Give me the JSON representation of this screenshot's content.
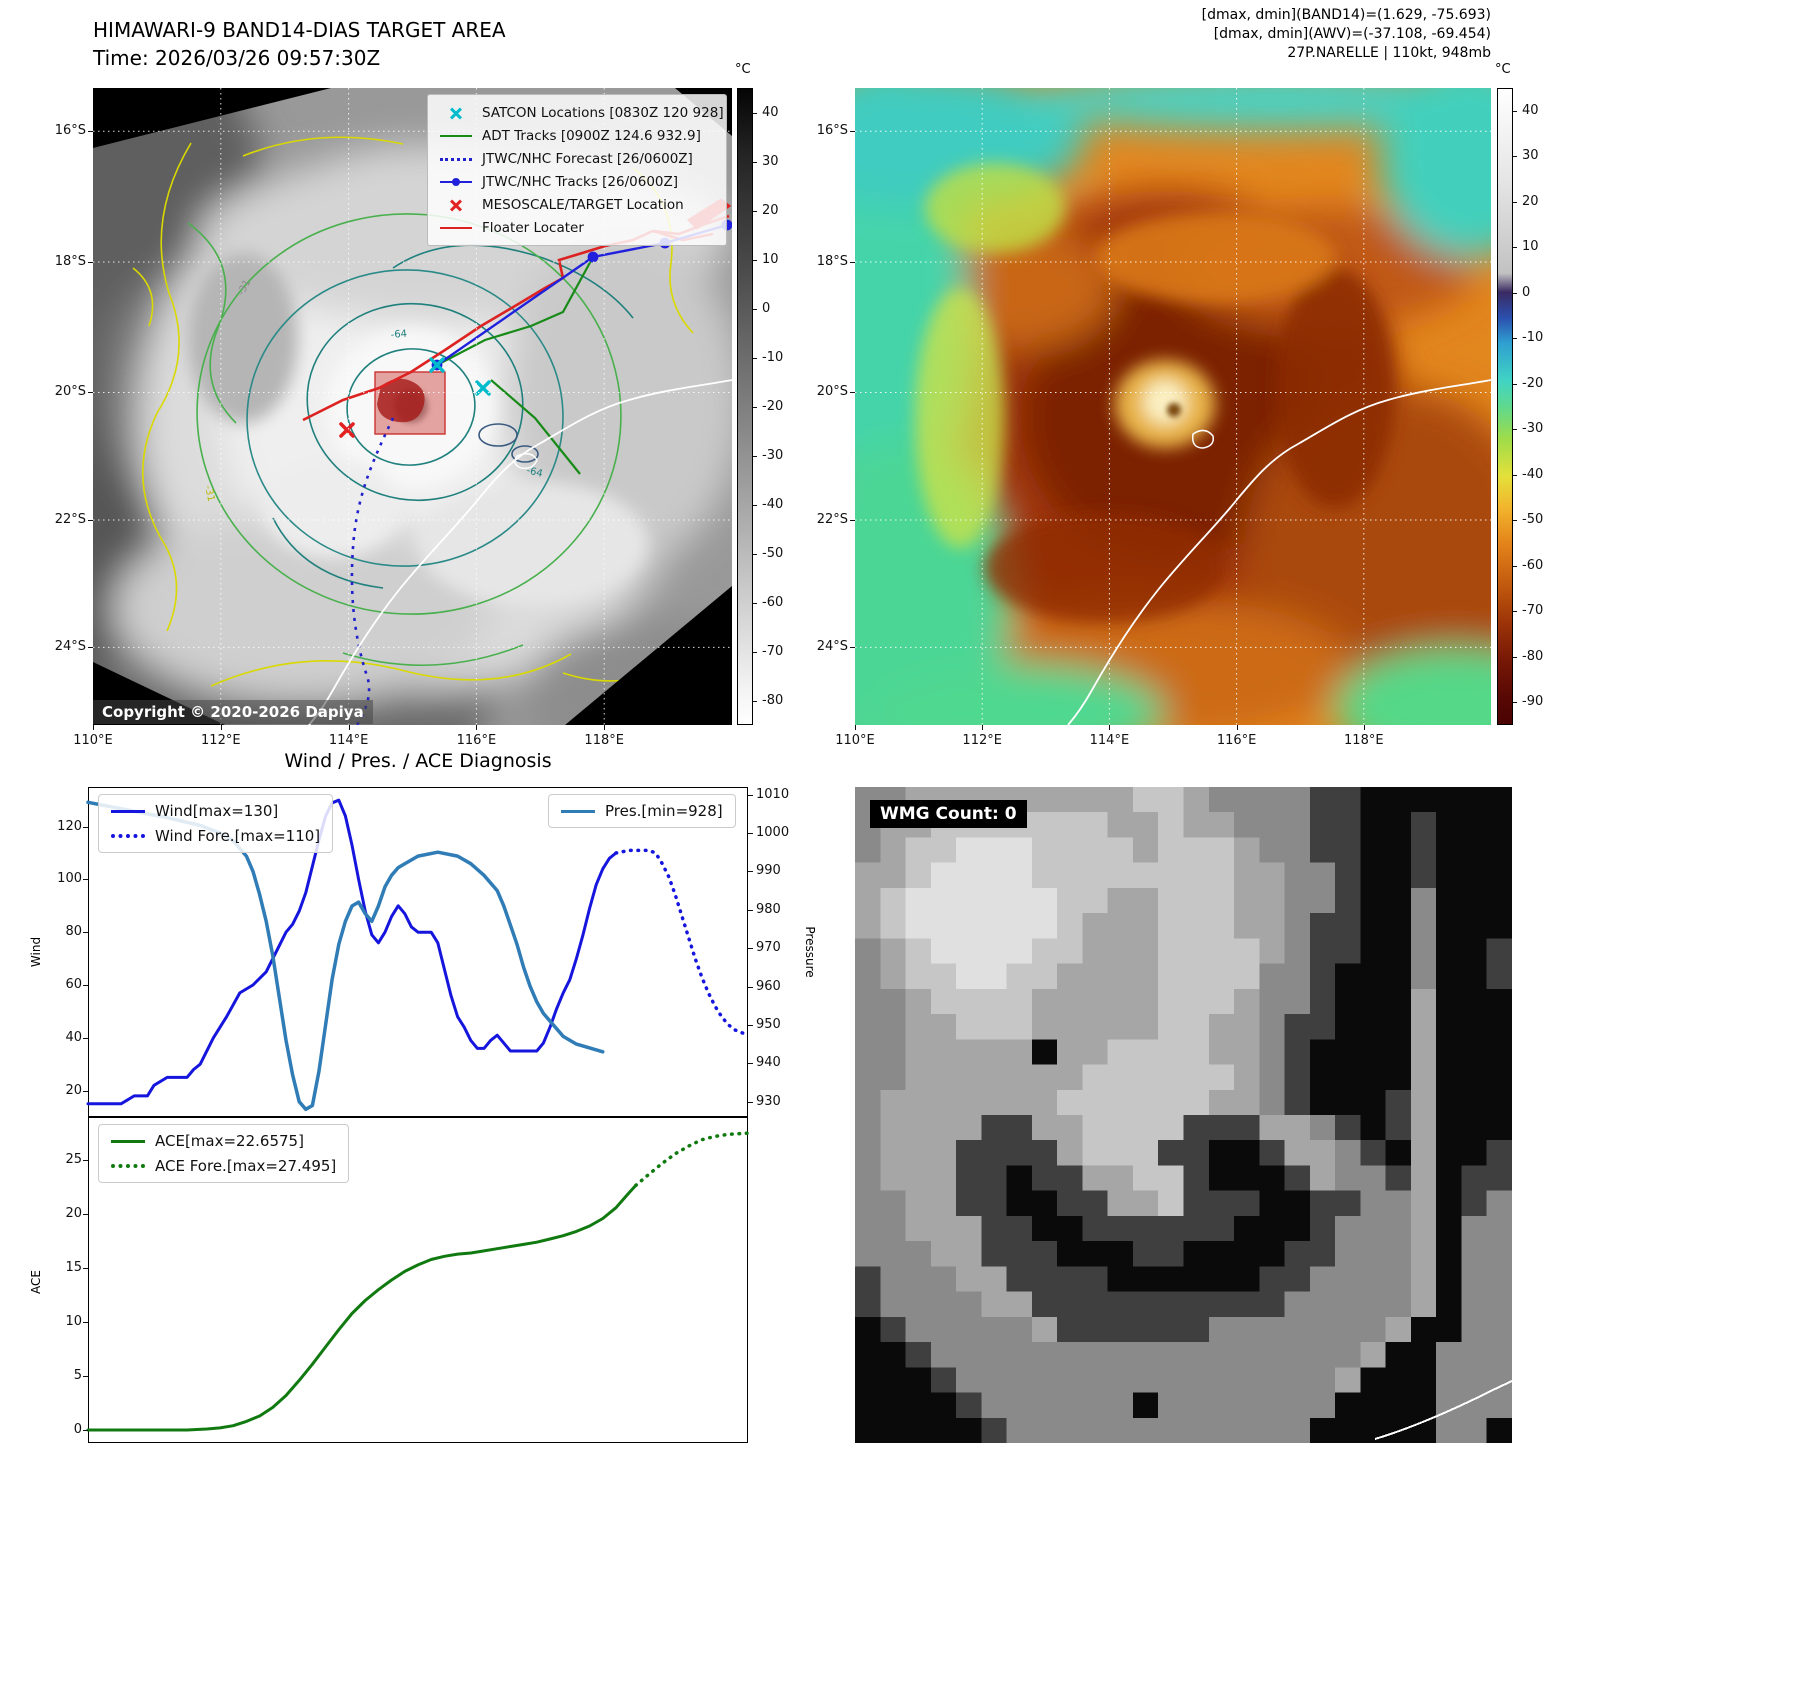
{
  "band14": {
    "title": "HIMAWARI-9 BAND14-DIAS TARGET AREA",
    "time": "Time: 2026/03/26 09:57:30Z",
    "copyright": "Copyright © 2020-2026 Dapiya",
    "colorbar_unit": "°C",
    "colorbar_ticks": [
      40,
      30,
      20,
      10,
      0,
      -10,
      -20,
      -30,
      -40,
      -50,
      -60,
      -70,
      -80
    ],
    "x_ticks": [
      "110°E",
      "112°E",
      "114°E",
      "116°E",
      "118°E"
    ],
    "y_ticks": [
      "16°S",
      "18°S",
      "20°S",
      "22°S",
      "24°S"
    ],
    "legend": [
      {
        "marker": "x-cyan",
        "label": "SATCON Locations [0830Z 120 928]"
      },
      {
        "marker": "line-green",
        "label": "ADT Tracks [0900Z 124.6 932.9]"
      },
      {
        "marker": "dotted-blue",
        "label": "JTWC/NHC Forecast [26/0600Z]"
      },
      {
        "marker": "line-dot-blue",
        "label": "JTWC/NHC Tracks [26/0600Z]"
      },
      {
        "marker": "x-red",
        "label": "MESOSCALE/TARGET Location"
      },
      {
        "marker": "line-red",
        "label": "Floater Locater"
      }
    ],
    "contour_labels": [
      "-31",
      "-64",
      "-64",
      "-31"
    ]
  },
  "awv": {
    "header_lines": [
      "[dmax, dmin](BAND14)=(1.629, -75.693)",
      "[dmax, dmin](AWV)=(-37.108, -69.454)",
      "27P.NARELLE | 110kt, 948mb"
    ],
    "colorbar_unit": "°C",
    "colorbar_ticks": [
      40,
      30,
      20,
      10,
      0,
      -10,
      -20,
      -30,
      -40,
      -50,
      -60,
      -70,
      -80,
      -90
    ],
    "x_ticks": [
      "110°E",
      "112°E",
      "114°E",
      "116°E",
      "118°E"
    ],
    "y_ticks": [
      "16°S",
      "18°S",
      "20°S",
      "22°S",
      "24°S"
    ]
  },
  "diagnosis": {
    "title": "Wind / Pres. / ACE Diagnosis",
    "wind_axis_label": "Wind",
    "pressure_axis_label": "Pressure",
    "ace_axis_label": "ACE",
    "legend_wind": "Wind[max=130]",
    "legend_wind_fore": "Wind Fore.[max=110]",
    "legend_pres": "Pres.[min=928]",
    "legend_ace": "ACE[max=22.6575]",
    "legend_ace_fore": "ACE Fore.[max=27.495]",
    "wind_ticks": [
      20,
      40,
      60,
      80,
      100,
      120
    ],
    "pressure_ticks": [
      930,
      940,
      950,
      960,
      970,
      980,
      990,
      1000,
      1010
    ],
    "ace_ticks": [
      0,
      5,
      10,
      15,
      20,
      25
    ]
  },
  "wmg": {
    "label": "WMG Count: 0",
    "palette": {
      "#": "#0a0a0a",
      "d": "#3f3f3f",
      "m": "#8a8a8a",
      "g": "#a6a6a6",
      "l": "#c6c6c6",
      "w": "#e0e0e0"
    },
    "pixels": [
      "mmgggggggggllgmmmmdd######",
      "mgglllllllgglggmmmdd##d###",
      "mgllwwwllllglllgmmdd##d###",
      "gglwwwwllllllllggmmd##d###",
      "glwwwwwwllgglllggmmd##m###",
      "glwwwwwwlggglllggmdd##m###",
      "mglwwwwllgggllllgmdd##m##d",
      "mgllwwllggggllllmmd###m##d",
      "mmgllllggggglllgmmd###g###",
      "mmgglllgggggllggmdd###g###",
      "mmggggg#ggllllggmd####g###",
      "mmgggggggllllllgmd####g###",
      "mgggggggllllllggmd###dg###",
      "mggggddgglllldddggmd#dg###",
      "mgggddddgllldd##dggmd#g##d",
      "mgggdd#ddgglld###dgmmdg#dd",
      "mmggdd##ddgglddd##ddmmg#dm",
      "mmgggdd##dddddd###dmmmg#mm",
      "mmmggddd###dd####ddmmmg#mm",
      "dmmmggdddd######ddmmmmg#mm",
      "dmmmmggddddddddddmmmmmg#mm",
      "#dmmmmmgddddddmmmmmmmg##mm",
      "##dmmmmmmmmmmmmmmmmmg##mmm",
      "###dmmmmmmmmmmmmmmmg###mmm",
      "####dmmmmmm#mmmmmmm####mmm",
      "#####dmmmmmmmmmmmm#####mm#"
    ]
  },
  "chart_data": [
    {
      "type": "line",
      "title": "Wind / Pres. / ACE Diagnosis (wind & pressure)",
      "x_range": [
        0,
        100
      ],
      "wind_ylim": [
        10,
        135
      ],
      "pressure_ylim": [
        926,
        1012
      ],
      "legend": [
        "Wind[max=130]",
        "Wind Fore.[max=110]",
        "Pres.[min=928]"
      ],
      "series": [
        {
          "name": "Wind",
          "name_id": "wind-series",
          "axis": "wind",
          "color": "#1515dd",
          "style": "solid",
          "width": 3,
          "points": [
            [
              0,
              15
            ],
            [
              5,
              15
            ],
            [
              7,
              18
            ],
            [
              9,
              18
            ],
            [
              10,
              22
            ],
            [
              12,
              25
            ],
            [
              15,
              25
            ],
            [
              16,
              28
            ],
            [
              17,
              30
            ],
            [
              19,
              40
            ],
            [
              21,
              48
            ],
            [
              23,
              57
            ],
            [
              25,
              60
            ],
            [
              27,
              65
            ],
            [
              28,
              70
            ],
            [
              29,
              75
            ],
            [
              30,
              80
            ],
            [
              31,
              83
            ],
            [
              32,
              88
            ],
            [
              33,
              95
            ],
            [
              34,
              105
            ],
            [
              35,
              115
            ],
            [
              36,
              124
            ],
            [
              37,
              129
            ],
            [
              38,
              130
            ],
            [
              39,
              124
            ],
            [
              40,
              113
            ],
            [
              41,
              100
            ],
            [
              42,
              88
            ],
            [
              43,
              79
            ],
            [
              44,
              76
            ],
            [
              45,
              80
            ],
            [
              46,
              86
            ],
            [
              47,
              90
            ],
            [
              48,
              87
            ],
            [
              49,
              82
            ],
            [
              50,
              80
            ],
            [
              52,
              80
            ],
            [
              53,
              76
            ],
            [
              54,
              66
            ],
            [
              55,
              56
            ],
            [
              56,
              48
            ],
            [
              57,
              44
            ],
            [
              58,
              39
            ],
            [
              59,
              36
            ],
            [
              60,
              36
            ],
            [
              61,
              39
            ],
            [
              62,
              41
            ],
            [
              63,
              38
            ],
            [
              64,
              35
            ],
            [
              68,
              35
            ],
            [
              69,
              38
            ],
            [
              70,
              44
            ],
            [
              71,
              51
            ],
            [
              72,
              57
            ],
            [
              73,
              62
            ],
            [
              74,
              70
            ],
            [
              75,
              79
            ],
            [
              76,
              89
            ],
            [
              77,
              98
            ],
            [
              78,
              104
            ],
            [
              79,
              108
            ],
            [
              80,
              110
            ]
          ]
        },
        {
          "name": "Wind Fore.",
          "name_id": "wind-forecast-series",
          "axis": "wind",
          "color": "#1515dd",
          "style": "dotted",
          "width": 3.5,
          "points": [
            [
              80,
              110
            ],
            [
              82,
              111
            ],
            [
              84,
              111
            ],
            [
              85,
              111
            ],
            [
              86,
              110
            ],
            [
              87,
              106
            ],
            [
              88,
              101
            ],
            [
              89,
              94
            ],
            [
              90,
              86
            ],
            [
              91,
              78
            ],
            [
              92,
              70
            ],
            [
              93,
              63
            ],
            [
              94,
              57
            ],
            [
              95,
              52
            ],
            [
              96,
              48
            ],
            [
              97,
              45
            ],
            [
              98,
              43
            ],
            [
              100,
              41
            ]
          ]
        },
        {
          "name": "Pres.",
          "name_id": "pressure-series",
          "axis": "pressure",
          "color": "#2f7cb6",
          "style": "solid",
          "width": 3.5,
          "points": [
            [
              0,
              1008
            ],
            [
              6,
              1006
            ],
            [
              12,
              1004
            ],
            [
              17,
              1002
            ],
            [
              20,
              1000
            ],
            [
              22,
              998
            ],
            [
              24,
              994
            ],
            [
              25,
              990
            ],
            [
              26,
              984
            ],
            [
              27,
              977
            ],
            [
              28,
              968
            ],
            [
              29,
              957
            ],
            [
              30,
              946
            ],
            [
              31,
              937
            ],
            [
              32,
              930
            ],
            [
              33,
              928
            ],
            [
              34,
              929
            ],
            [
              35,
              938
            ],
            [
              36,
              950
            ],
            [
              37,
              962
            ],
            [
              38,
              971
            ],
            [
              39,
              977
            ],
            [
              40,
              981
            ],
            [
              41,
              982
            ],
            [
              42,
              979
            ],
            [
              43,
              977
            ],
            [
              44,
              981
            ],
            [
              45,
              986
            ],
            [
              46,
              989
            ],
            [
              47,
              991
            ],
            [
              48,
              992
            ],
            [
              50,
              994
            ],
            [
              53,
              995
            ],
            [
              56,
              994
            ],
            [
              58,
              992
            ],
            [
              60,
              989
            ],
            [
              62,
              985
            ],
            [
              63,
              981
            ],
            [
              64,
              976
            ],
            [
              65,
              971
            ],
            [
              66,
              965
            ],
            [
              67,
              960
            ],
            [
              68,
              956
            ],
            [
              69,
              953
            ],
            [
              70,
              951
            ],
            [
              71,
              949
            ],
            [
              72,
              947
            ],
            [
              74,
              945
            ],
            [
              76,
              944
            ],
            [
              78,
              943
            ]
          ]
        }
      ]
    },
    {
      "type": "line",
      "title": "ACE accumulation",
      "x_range": [
        0,
        100
      ],
      "ylim": [
        -1.2,
        29
      ],
      "legend": [
        "ACE[max=22.6575]",
        "ACE Fore.[max=27.495]"
      ],
      "series": [
        {
          "name": "ACE",
          "name_id": "ace-series",
          "color": "#107a10",
          "style": "solid",
          "width": 3,
          "points": [
            [
              0,
              0
            ],
            [
              10,
              0
            ],
            [
              15,
              0
            ],
            [
              18,
              0.1
            ],
            [
              20,
              0.2
            ],
            [
              22,
              0.4
            ],
            [
              24,
              0.8
            ],
            [
              26,
              1.3
            ],
            [
              28,
              2.1
            ],
            [
              30,
              3.2
            ],
            [
              32,
              4.6
            ],
            [
              34,
              6.1
            ],
            [
              36,
              7.7
            ],
            [
              38,
              9.3
            ],
            [
              40,
              10.8
            ],
            [
              42,
              12
            ],
            [
              44,
              13
            ],
            [
              46,
              13.9
            ],
            [
              48,
              14.7
            ],
            [
              50,
              15.3
            ],
            [
              52,
              15.8
            ],
            [
              54,
              16.1
            ],
            [
              56,
              16.3
            ],
            [
              58,
              16.4
            ],
            [
              60,
              16.6
            ],
            [
              62,
              16.8
            ],
            [
              64,
              17
            ],
            [
              66,
              17.2
            ],
            [
              68,
              17.4
            ],
            [
              70,
              17.7
            ],
            [
              72,
              18
            ],
            [
              74,
              18.4
            ],
            [
              76,
              18.9
            ],
            [
              78,
              19.6
            ],
            [
              80,
              20.6
            ],
            [
              81,
              21.3
            ],
            [
              82,
              22
            ],
            [
              83,
              22.66
            ]
          ]
        },
        {
          "name": "ACE Fore.",
          "name_id": "ace-forecast-series",
          "color": "#107a10",
          "style": "dotted",
          "width": 3.5,
          "points": [
            [
              83,
              22.66
            ],
            [
              85,
              23.7
            ],
            [
              87,
              24.7
            ],
            [
              89,
              25.6
            ],
            [
              91,
              26.3
            ],
            [
              93,
              26.9
            ],
            [
              95,
              27.2
            ],
            [
              97,
              27.4
            ],
            [
              100,
              27.5
            ]
          ]
        }
      ]
    }
  ]
}
